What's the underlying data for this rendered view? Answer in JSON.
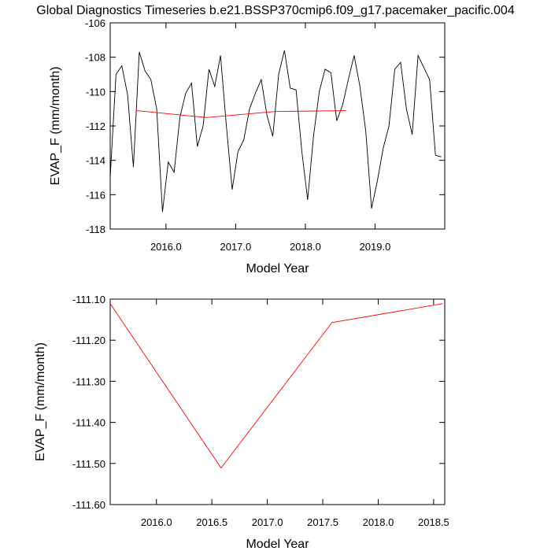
{
  "chart_data": [
    {
      "type": "line",
      "title": "Global Diagnostics Timeseries b.e21.BSSP370cmip6.f09_g17.pacemaker_pacific.004",
      "x_label": "Model Year",
      "y_label": "EVAP_F (mm/month)",
      "xlim": [
        2015.2,
        2020.0
      ],
      "ylim": [
        -118,
        -106
      ],
      "xticks": [
        {
          "value": 2016,
          "label": "2016.0"
        },
        {
          "value": 2017,
          "label": "2017.0"
        },
        {
          "value": 2018,
          "label": "2018.0"
        },
        {
          "value": 2019,
          "label": "2019.0"
        }
      ],
      "yticks": [
        -118,
        -116,
        -114,
        -112,
        -110,
        -108,
        -106
      ],
      "series": [
        {
          "color": "#000000",
          "x": [
            2015.2,
            2015.283,
            2015.367,
            2015.45,
            2015.533,
            2015.617,
            2015.7,
            2015.783,
            2015.867,
            2015.95,
            2016.033,
            2016.117,
            2016.2,
            2016.283,
            2016.367,
            2016.45,
            2016.533,
            2016.617,
            2016.7,
            2016.783,
            2016.867,
            2016.95,
            2017.033,
            2017.117,
            2017.2,
            2017.283,
            2017.367,
            2017.45,
            2017.533,
            2017.617,
            2017.7,
            2017.783,
            2017.867,
            2017.95,
            2018.033,
            2018.117,
            2018.2,
            2018.283,
            2018.367,
            2018.45,
            2018.533,
            2018.617,
            2018.7,
            2018.783,
            2018.867,
            2018.95,
            2019.033,
            2019.117,
            2019.2,
            2019.283,
            2019.367,
            2019.45,
            2019.533,
            2019.617,
            2019.7,
            2019.783,
            2019.867,
            2019.95
          ],
          "values": [
            -115.0,
            -109.0,
            -108.5,
            -110.2,
            -114.4,
            -107.7,
            -108.8,
            -109.3,
            -111.0,
            -117.0,
            -114.1,
            -114.7,
            -111.5,
            -110.1,
            -109.5,
            -113.2,
            -112.0,
            -108.7,
            -109.7,
            -107.9,
            -112.0,
            -115.7,
            -113.5,
            -112.8,
            -111.0,
            -110.1,
            -109.3,
            -111.4,
            -112.6,
            -109.0,
            -107.6,
            -109.8,
            -109.9,
            -113.5,
            -116.3,
            -112.6,
            -110.0,
            -108.7,
            -108.9,
            -111.7,
            -110.8,
            -109.3,
            -107.9,
            -109.7,
            -112.3,
            -116.8,
            -115.2,
            -113.3,
            -112.0,
            -108.7,
            -108.3,
            -111.0,
            -112.5,
            -107.9,
            -108.6,
            -109.3,
            -113.7,
            -113.8
          ]
        },
        {
          "color": "#ff0000",
          "x": [
            2015.583,
            2016.583,
            2017.583,
            2018.583
          ],
          "values": [
            -111.111,
            -111.511,
            -111.157,
            -111.111
          ]
        }
      ]
    },
    {
      "type": "line",
      "x_label": "Model Year",
      "y_label": "EVAP_F (mm/month)",
      "xlim": [
        2015.583,
        2018.6
      ],
      "ylim": [
        -111.6,
        -111.1
      ],
      "xticks": [
        {
          "value": 2016,
          "label": "2016.0"
        },
        {
          "value": 2016.5,
          "label": "2016.5"
        },
        {
          "value": 2017,
          "label": "2017.0"
        },
        {
          "value": 2017.5,
          "label": "2017.5"
        },
        {
          "value": 2018,
          "label": "2018.0"
        },
        {
          "value": 2018.5,
          "label": "2018.5"
        }
      ],
      "yticks": [
        {
          "value": -111.6,
          "label": "-111.60"
        },
        {
          "value": -111.5,
          "label": "-111.50"
        },
        {
          "value": -111.4,
          "label": "-111.40"
        },
        {
          "value": -111.3,
          "label": "-111.30"
        },
        {
          "value": -111.2,
          "label": "-111.20"
        },
        {
          "value": -111.1,
          "label": "-111.10"
        }
      ],
      "series": [
        {
          "color": "#ff0000",
          "x": [
            2015.583,
            2016.583,
            2017.583,
            2018.583
          ],
          "values": [
            -111.111,
            -111.511,
            -111.157,
            -111.111
          ]
        }
      ]
    }
  ]
}
